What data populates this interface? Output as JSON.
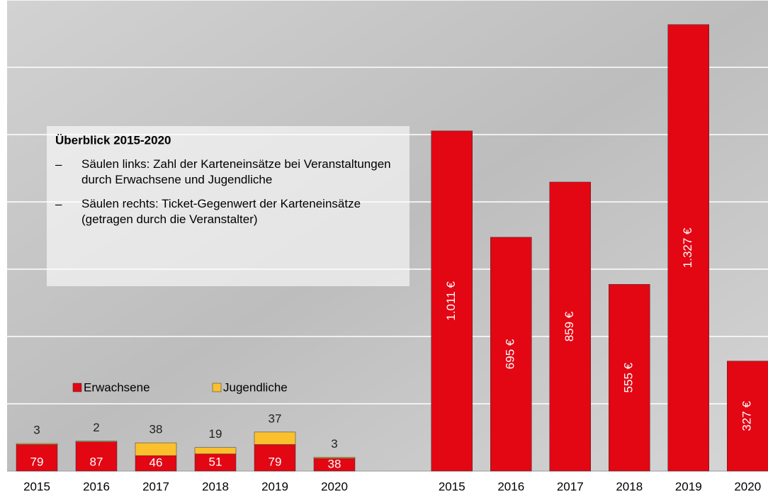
{
  "chart_data": [
    {
      "type": "stacked_bar",
      "categories": [
        "2015",
        "2016",
        "2017",
        "2018",
        "2019",
        "2020"
      ],
      "series": [
        {
          "name": "Erwachsene",
          "color": "#e30613",
          "values": [
            79,
            87,
            46,
            51,
            79,
            38
          ]
        },
        {
          "name": "Jugendliche",
          "color": "#fbc02d",
          "values": [
            3,
            2,
            38,
            19,
            37,
            3
          ]
        }
      ],
      "ylim": [
        0,
        1400
      ],
      "yticks": [
        0,
        200,
        400,
        600,
        800,
        1000,
        1200,
        1400
      ],
      "grid": true,
      "annotation": {
        "title": "Überblick 2015-2020",
        "items": [
          "Säulen links: Zahl der Karteneinsätze bei Veranstaltungen durch Erwachsene und Jugendliche",
          "Säulen rechts: Ticket-Gegenwert der Karteneinsätze (getragen durch die Veranstalter)"
        ]
      }
    },
    {
      "type": "bar",
      "categories": [
        "2015",
        "2016",
        "2017",
        "2018",
        "2019",
        "2020"
      ],
      "values": [
        1011,
        695,
        859,
        555,
        1327,
        327
      ],
      "value_labels": [
        "1.011 €",
        "695 €",
        "859 €",
        "555 €",
        "1.327 €",
        "327 €"
      ],
      "color": "#e30613",
      "ylim": [
        0,
        1400
      ]
    }
  ]
}
